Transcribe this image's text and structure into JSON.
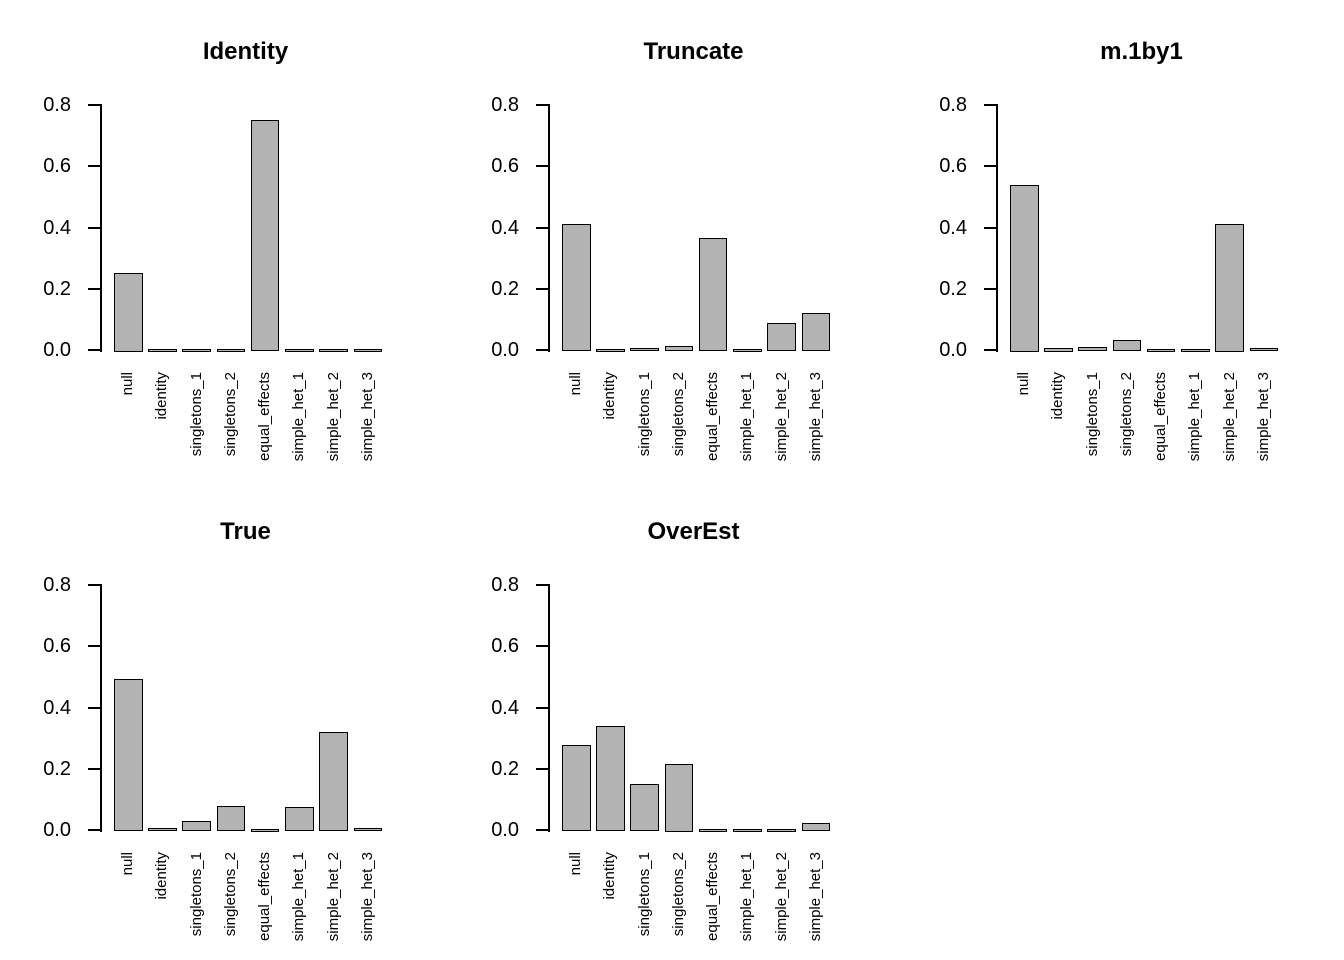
{
  "figure": {
    "type": "barplot-grid",
    "background": "#ffffff",
    "bar_fill": "#b3b3b3",
    "bar_border": "#000000",
    "axis_color": "#000000",
    "text_color": "#000000",
    "rows": 2,
    "cols": 3
  },
  "chart_data": [
    {
      "type": "bar",
      "title": "Identity",
      "categories": [
        "null",
        "identity",
        "singletons_1",
        "singletons_2",
        "equal_effects",
        "simple_het_1",
        "simple_het_2",
        "simple_het_3"
      ],
      "values": [
        0.25,
        0.001,
        0.001,
        0.003,
        0.751,
        0.001,
        0.001,
        0.001
      ],
      "ylim": [
        0,
        0.8
      ],
      "yticks": [
        0.0,
        0.2,
        0.4,
        0.6,
        0.8
      ],
      "ytick_labels": [
        "0.0",
        "0.2",
        "0.4",
        "0.6",
        "0.8"
      ],
      "grid": false,
      "legend": null
    },
    {
      "type": "bar",
      "title": "Truncate",
      "categories": [
        "null",
        "identity",
        "singletons_1",
        "singletons_2",
        "equal_effects",
        "simple_het_1",
        "simple_het_2",
        "simple_het_3"
      ],
      "values": [
        0.413,
        0.002,
        0.006,
        0.013,
        0.366,
        0.002,
        0.089,
        0.122
      ],
      "ylim": [
        0,
        0.8
      ],
      "yticks": [
        0.0,
        0.2,
        0.4,
        0.6,
        0.8
      ],
      "ytick_labels": [
        "0.0",
        "0.2",
        "0.4",
        "0.6",
        "0.8"
      ],
      "grid": false,
      "legend": null
    },
    {
      "type": "bar",
      "title": "m.1by1",
      "categories": [
        "null",
        "identity",
        "singletons_1",
        "singletons_2",
        "equal_effects",
        "simple_het_1",
        "simple_het_2",
        "simple_het_3"
      ],
      "values": [
        0.54,
        0.005,
        0.011,
        0.033,
        0.004,
        0.002,
        0.41,
        0.008
      ],
      "ylim": [
        0,
        0.8
      ],
      "yticks": [
        0.0,
        0.2,
        0.4,
        0.6,
        0.8
      ],
      "ytick_labels": [
        "0.0",
        "0.2",
        "0.4",
        "0.6",
        "0.8"
      ],
      "grid": false,
      "legend": null
    },
    {
      "type": "bar",
      "title": "True",
      "categories": [
        "null",
        "identity",
        "singletons_1",
        "singletons_2",
        "equal_effects",
        "simple_het_1",
        "simple_het_2",
        "simple_het_3"
      ],
      "values": [
        0.494,
        0.006,
        0.028,
        0.078,
        0.002,
        0.074,
        0.319,
        0.006
      ],
      "ylim": [
        0,
        0.8
      ],
      "yticks": [
        0.0,
        0.2,
        0.4,
        0.6,
        0.8
      ],
      "ytick_labels": [
        "0.0",
        "0.2",
        "0.4",
        "0.6",
        "0.8"
      ],
      "grid": false,
      "legend": null
    },
    {
      "type": "bar",
      "title": "OverEst",
      "categories": [
        "null",
        "identity",
        "singletons_1",
        "singletons_2",
        "equal_effects",
        "simple_het_1",
        "simple_het_2",
        "simple_het_3"
      ],
      "values": [
        0.278,
        0.339,
        0.151,
        0.215,
        0.002,
        0.002,
        0.002,
        0.023
      ],
      "ylim": [
        0,
        0.8
      ],
      "yticks": [
        0.0,
        0.2,
        0.4,
        0.6,
        0.8
      ],
      "ytick_labels": [
        "0.0",
        "0.2",
        "0.4",
        "0.6",
        "0.8"
      ],
      "grid": false,
      "legend": null
    }
  ]
}
